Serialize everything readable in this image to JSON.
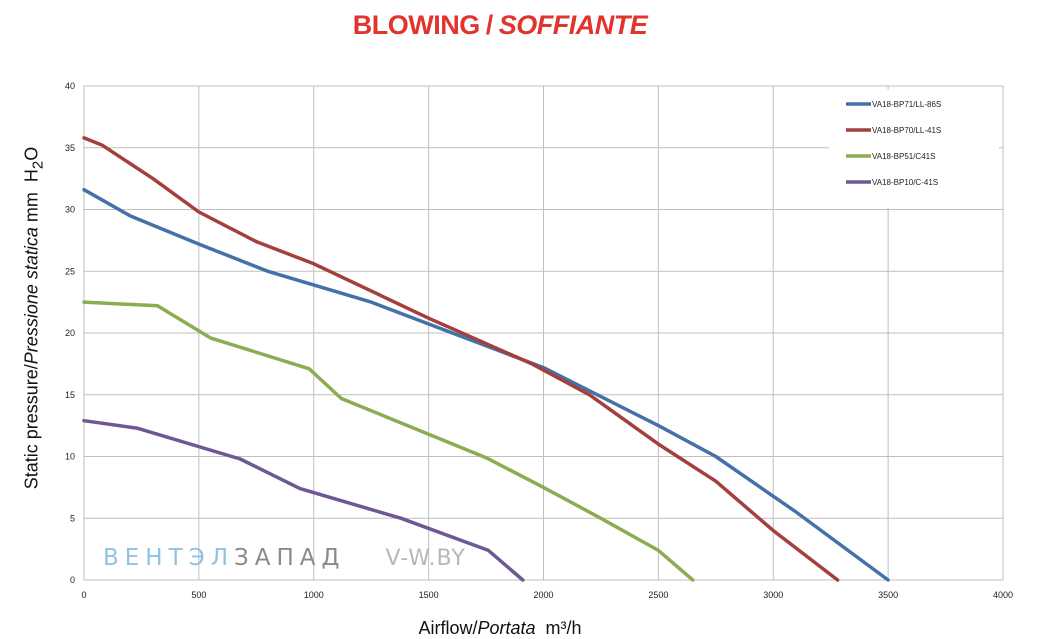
{
  "title": {
    "main": "BLOWING",
    "separator": "/",
    "italic": "SOFFIANTE"
  },
  "watermark": {
    "part1": "ВЕНТЭЛ",
    "part2": "ЗАПАД",
    "site": "V-W.BY"
  },
  "axis_labels": {
    "x_main": "Airflow",
    "x_sep": "/",
    "x_italic": "Portata",
    "x_unit": "m³/h",
    "y_main": "Static pressure",
    "y_sep": "/",
    "y_italic": "Pressione statica",
    "y_unit": "mm",
    "y_unit_h": "H",
    "y_unit_sub": "2",
    "y_unit_o": "O"
  },
  "colors": {
    "title": "#e0342d",
    "grid": "#bfbfbf"
  },
  "chart_data": {
    "type": "line",
    "xlim": [
      0,
      4000
    ],
    "ylim": [
      0,
      40
    ],
    "x_ticks": [
      0,
      500,
      1000,
      1500,
      2000,
      2500,
      3000,
      3500,
      4000
    ],
    "y_ticks": [
      0,
      5,
      10,
      15,
      20,
      25,
      30,
      35,
      40
    ],
    "grid": true,
    "legend_position": "top-right",
    "series": [
      {
        "name": "VA18-BP71/LL-86S",
        "color": "#4472a8",
        "x": [
          0,
          200,
          500,
          800,
          1250,
          2000,
          2500,
          2750,
          3100,
          3500
        ],
        "y": [
          31.6,
          29.5,
          27.2,
          25.0,
          22.5,
          17.2,
          12.5,
          10.0,
          5.5,
          0
        ]
      },
      {
        "name": "VA18-BP70/LL-41S",
        "color": "#a33f3c",
        "x": [
          0,
          80,
          300,
          500,
          750,
          1000,
          1500,
          1950,
          2200,
          2500,
          2750,
          3000,
          3280
        ],
        "y": [
          35.8,
          35.2,
          32.5,
          29.8,
          27.4,
          25.6,
          21.2,
          17.5,
          15.0,
          11.0,
          8.0,
          4.0,
          0
        ]
      },
      {
        "name": "VA18-BP51/C41S",
        "color": "#8cac52",
        "x": [
          0,
          320,
          550,
          980,
          1120,
          1750,
          2000,
          2250,
          2500,
          2650
        ],
        "y": [
          22.5,
          22.2,
          19.6,
          17.1,
          14.7,
          9.9,
          7.5,
          5.0,
          2.4,
          0
        ]
      },
      {
        "name": "VA18-BP10/C-41S",
        "color": "#6e5894",
        "x": [
          0,
          230,
          680,
          940,
          1380,
          1760,
          1910
        ],
        "y": [
          12.9,
          12.3,
          9.8,
          7.4,
          5.0,
          2.4,
          0
        ]
      }
    ]
  }
}
